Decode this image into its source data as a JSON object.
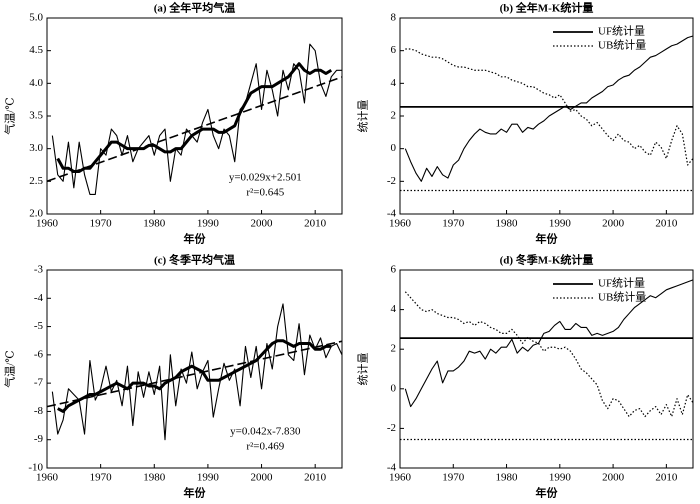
{
  "chart_data": [
    {
      "type": "line",
      "title": "(a) 全年平均气温",
      "xlabel": "年份",
      "ylabel": "气温/℃",
      "x": [
        1961,
        1962,
        1963,
        1964,
        1965,
        1966,
        1967,
        1968,
        1969,
        1970,
        1971,
        1972,
        1973,
        1974,
        1975,
        1976,
        1977,
        1978,
        1979,
        1980,
        1981,
        1982,
        1983,
        1984,
        1985,
        1986,
        1987,
        1988,
        1989,
        1990,
        1991,
        1992,
        1993,
        1994,
        1995,
        1996,
        1997,
        1998,
        1999,
        2000,
        2001,
        2002,
        2003,
        2004,
        2005,
        2006,
        2007,
        2008,
        2009,
        2010,
        2011,
        2012,
        2013,
        2014,
        2015
      ],
      "series": [
        {
          "color": "#000000",
          "style": "solid",
          "values": [
            3.2,
            2.6,
            2.5,
            3.1,
            2.4,
            3.1,
            2.6,
            2.3,
            2.3,
            3.0,
            2.9,
            3.3,
            3.2,
            2.9,
            3.2,
            2.8,
            3.0,
            3.1,
            3.2,
            2.9,
            3.2,
            3.3,
            2.5,
            3.0,
            2.9,
            3.3,
            3.2,
            3.1,
            3.4,
            3.6,
            3.2,
            3.0,
            3.3,
            3.2,
            2.8,
            3.6,
            3.7,
            4.0,
            4.3,
            3.6,
            4.2,
            3.9,
            3.5,
            4.2,
            3.9,
            4.3,
            4.2,
            3.7,
            4.6,
            4.5,
            4.0,
            3.8,
            4.1,
            4.2,
            4.2
          ]
        },
        {
          "color": "#000000",
          "style": "thick",
          "values": [
            null,
            2.85,
            2.7,
            2.7,
            2.65,
            2.65,
            2.7,
            2.7,
            2.8,
            2.9,
            3.0,
            3.1,
            3.1,
            3.05,
            3.0,
            3.0,
            3.0,
            3.0,
            3.05,
            3.05,
            3.0,
            2.95,
            2.95,
            3.0,
            3.0,
            3.1,
            3.2,
            3.25,
            3.3,
            3.3,
            3.3,
            3.25,
            3.25,
            3.3,
            3.35,
            3.55,
            3.7,
            3.85,
            3.9,
            3.95,
            3.95,
            3.95,
            4.0,
            4.05,
            4.1,
            4.2,
            4.3,
            4.2,
            4.15,
            4.2,
            4.2,
            4.15,
            4.2,
            null,
            null
          ]
        },
        {
          "color": "#000000",
          "style": "dashed",
          "x": [
            1960,
            2015
          ],
          "values": [
            2.501,
            4.096
          ]
        }
      ],
      "annotations": [
        "y=0.029x+2.501",
        "r²=0.645"
      ],
      "xlim": [
        1960,
        2015
      ],
      "xticks": [
        1960,
        1970,
        1980,
        1990,
        2000,
        2010
      ],
      "ylim": [
        2.0,
        5.0
      ],
      "yticks": [
        {
          "value": 2,
          "label": "2.0"
        },
        {
          "value": 2.5,
          "label": "2.5"
        },
        {
          "value": 3,
          "label": "3.0"
        },
        {
          "value": 3.5,
          "label": "3.5"
        },
        {
          "value": 4,
          "label": "4.0"
        },
        {
          "value": 4.5,
          "label": "4.5"
        },
        {
          "value": 5,
          "label": "5.0"
        }
      ]
    },
    {
      "type": "line",
      "title": "(b) 全年M-K统计量",
      "xlabel": "年份",
      "ylabel": "统计量",
      "legend": "upper right",
      "x": [
        1961,
        1962,
        1963,
        1964,
        1965,
        1966,
        1967,
        1968,
        1969,
        1970,
        1971,
        1972,
        1973,
        1974,
        1975,
        1976,
        1977,
        1978,
        1979,
        1980,
        1981,
        1982,
        1983,
        1984,
        1985,
        1986,
        1987,
        1988,
        1989,
        1990,
        1991,
        1992,
        1993,
        1994,
        1995,
        1996,
        1997,
        1998,
        1999,
        2000,
        2001,
        2002,
        2003,
        2004,
        2005,
        2006,
        2007,
        2008,
        2009,
        2010,
        2011,
        2012,
        2013,
        2014,
        2015
      ],
      "series": [
        {
          "name": "UF统计量",
          "color": "#000000",
          "style": "solid",
          "values": [
            0,
            -0.8,
            -1.5,
            -2.0,
            -1.2,
            -1.7,
            -1.1,
            -1.6,
            -1.8,
            -1.0,
            -0.7,
            0.0,
            0.5,
            0.9,
            1.2,
            1.0,
            0.9,
            0.9,
            1.2,
            1.0,
            1.5,
            1.5,
            1.0,
            1.3,
            1.2,
            1.5,
            1.7,
            2.0,
            2.2,
            2.4,
            2.6,
            2.4,
            2.6,
            2.8,
            2.8,
            3.1,
            3.3,
            3.5,
            3.8,
            3.9,
            4.2,
            4.4,
            4.5,
            4.8,
            5.0,
            5.3,
            5.6,
            5.7,
            5.9,
            6.1,
            6.3,
            6.4,
            6.6,
            6.8,
            6.9
          ]
        },
        {
          "name": "UB统计量",
          "color": "#000000",
          "style": "dotted",
          "values": [
            6.1,
            6.1,
            6.0,
            5.8,
            5.7,
            5.6,
            5.6,
            5.5,
            5.3,
            5.1,
            5.0,
            5.0,
            4.9,
            4.8,
            4.8,
            4.8,
            4.7,
            4.6,
            4.4,
            4.4,
            4.2,
            4.1,
            4.0,
            3.8,
            3.8,
            3.6,
            3.4,
            3.3,
            3.1,
            3.3,
            2.8,
            2.3,
            2.4,
            2.0,
            1.8,
            1.4,
            1.6,
            1.2,
            0.8,
            0.5,
            0.9,
            0.5,
            0.4,
            0.0,
            0.2,
            -0.2,
            -0.4,
            0.4,
            0.1,
            -0.6,
            0.5,
            1.4,
            0.9,
            -1.0,
            -0.6
          ]
        }
      ],
      "reference_lines": [
        {
          "value": 2.56,
          "style": "solid"
        },
        {
          "value": -2.56,
          "style": "dotted"
        }
      ],
      "xlim": [
        1960,
        2015
      ],
      "xticks": [
        1960,
        1970,
        1980,
        1990,
        2000,
        2010
      ],
      "ylim": [
        -4,
        8
      ],
      "yticks": [
        -4,
        -2,
        0,
        2,
        4,
        6,
        8
      ]
    },
    {
      "type": "line",
      "title": "(c) 冬季平均气温",
      "xlabel": "年份",
      "ylabel": "气温/℃",
      "x": [
        1961,
        1962,
        1963,
        1964,
        1965,
        1966,
        1967,
        1968,
        1969,
        1970,
        1971,
        1972,
        1973,
        1974,
        1975,
        1976,
        1977,
        1978,
        1979,
        1980,
        1981,
        1982,
        1983,
        1984,
        1985,
        1986,
        1987,
        1988,
        1989,
        1990,
        1991,
        1992,
        1993,
        1994,
        1995,
        1996,
        1997,
        1998,
        1999,
        2000,
        2001,
        2002,
        2003,
        2004,
        2005,
        2006,
        2007,
        2008,
        2009,
        2010,
        2011,
        2012,
        2013,
        2014,
        2015
      ],
      "series": [
        {
          "color": "#000000",
          "style": "solid",
          "values": [
            -7.3,
            -8.8,
            -8.3,
            -7.2,
            -7.4,
            -7.6,
            -8.8,
            -6.2,
            -7.6,
            -7.2,
            -6.4,
            -7.3,
            -6.9,
            -7.8,
            -6.4,
            -8.5,
            -6.6,
            -7.5,
            -6.6,
            -7.4,
            -6.4,
            -9.0,
            -6.0,
            -7.8,
            -6.5,
            -7.0,
            -5.9,
            -7.2,
            -6.6,
            -6.2,
            -8.2,
            -7.2,
            -6.3,
            -6.9,
            -6.5,
            -7.8,
            -5.7,
            -6.8,
            -5.7,
            -7.2,
            -5.6,
            -6.5,
            -5.0,
            -4.2,
            -6.0,
            -6.2,
            -4.9,
            -6.7,
            -5.3,
            -5.8,
            -5.4,
            -6.1,
            -5.7,
            -5.6,
            -6.0
          ]
        },
        {
          "color": "#000000",
          "style": "thick",
          "values": [
            null,
            -7.9,
            -8.0,
            -7.8,
            -7.7,
            -7.6,
            -7.5,
            -7.4,
            -7.4,
            -7.3,
            -7.2,
            -7.1,
            -7.0,
            -7.1,
            -7.2,
            -7.0,
            -7.0,
            -7.0,
            -7.1,
            -7.1,
            -7.2,
            -7.0,
            -6.9,
            -6.8,
            -6.6,
            -6.5,
            -6.4,
            -6.5,
            -6.6,
            -6.9,
            -6.9,
            -6.9,
            -6.8,
            -6.7,
            -6.6,
            -6.5,
            -6.4,
            -6.3,
            -6.2,
            -6.0,
            -5.8,
            -5.6,
            -5.5,
            -5.5,
            -5.6,
            -5.7,
            -5.6,
            -5.6,
            -5.6,
            -5.8,
            -5.8,
            -5.7,
            -5.7,
            null,
            null
          ]
        },
        {
          "color": "#000000",
          "style": "dashed",
          "x": [
            1960,
            2015
          ],
          "values": [
            -7.83,
            -5.52
          ]
        }
      ],
      "annotations": [
        "y=0.042x-7.830",
        "r²=0.469"
      ],
      "xlim": [
        1960,
        2015
      ],
      "xticks": [
        1960,
        1970,
        1980,
        1990,
        2000,
        2010
      ],
      "ylim": [
        -10,
        -3
      ],
      "yticks": [
        -10,
        -9,
        -8,
        -7,
        -6,
        -5,
        -4,
        -3
      ]
    },
    {
      "type": "line",
      "title": "(d) 冬季M-K统计量",
      "xlabel": "年份",
      "ylabel": "统计量",
      "legend": "upper right",
      "x": [
        1961,
        1962,
        1963,
        1964,
        1965,
        1966,
        1967,
        1968,
        1969,
        1970,
        1971,
        1972,
        1973,
        1974,
        1975,
        1976,
        1977,
        1978,
        1979,
        1980,
        1981,
        1982,
        1983,
        1984,
        1985,
        1986,
        1987,
        1988,
        1989,
        1990,
        1991,
        1992,
        1993,
        1994,
        1995,
        1996,
        1997,
        1998,
        1999,
        2000,
        2001,
        2002,
        2003,
        2004,
        2005,
        2006,
        2007,
        2008,
        2009,
        2010,
        2011,
        2012,
        2013,
        2014,
        2015
      ],
      "series": [
        {
          "name": "UF统计量",
          "color": "#000000",
          "style": "solid",
          "values": [
            0,
            -0.9,
            -0.5,
            0.0,
            0.5,
            1.0,
            1.4,
            0.3,
            0.9,
            0.9,
            1.1,
            1.4,
            1.9,
            1.8,
            1.9,
            1.5,
            2.0,
            1.8,
            2.1,
            2.1,
            2.5,
            1.8,
            2.1,
            1.9,
            2.2,
            2.3,
            2.8,
            2.9,
            3.2,
            3.4,
            3.0,
            3.0,
            3.3,
            3.1,
            3.1,
            2.7,
            2.8,
            2.7,
            2.8,
            2.9,
            3.1,
            3.5,
            3.8,
            4.1,
            4.3,
            4.5,
            4.7,
            4.6,
            4.8,
            5.0,
            5.1,
            5.2,
            5.3,
            5.4,
            5.5
          ]
        },
        {
          "name": "UB统计量",
          "color": "#000000",
          "style": "dotted",
          "values": [
            4.9,
            4.6,
            4.3,
            4.0,
            3.9,
            4.0,
            3.8,
            3.7,
            3.6,
            3.6,
            3.5,
            3.3,
            3.4,
            3.2,
            3.4,
            3.3,
            3.1,
            3.0,
            2.8,
            2.8,
            3.0,
            2.7,
            2.3,
            2.6,
            2.4,
            2.3,
            1.9,
            2.1,
            2.1,
            2.0,
            2.1,
            1.9,
            1.5,
            1.0,
            0.8,
            0.5,
            0.2,
            -0.6,
            -1.0,
            -0.5,
            -0.6,
            -1.0,
            -1.4,
            -1.1,
            -1.0,
            -1.4,
            -1.1,
            -0.9,
            -1.3,
            -0.8,
            -1.4,
            -0.5,
            -1.3,
            -0.3,
            -0.7
          ]
        }
      ],
      "reference_lines": [
        {
          "value": 2.56,
          "style": "solid"
        },
        {
          "value": -2.56,
          "style": "dotted"
        }
      ],
      "xlim": [
        1960,
        2015
      ],
      "xticks": [
        1960,
        1970,
        1980,
        1990,
        2000,
        2010
      ],
      "ylim": [
        -4,
        6
      ],
      "yticks": [
        -4,
        -2,
        0,
        2,
        4,
        6
      ]
    }
  ]
}
